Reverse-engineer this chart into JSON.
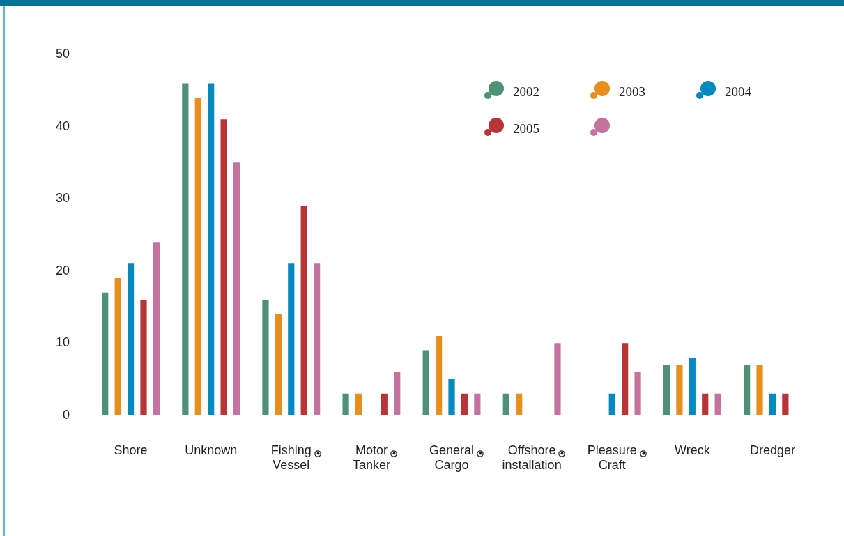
{
  "chart_data": {
    "type": "bar",
    "categories": [
      "Shore",
      "Unknown",
      "Fishing\nVessel",
      "Motor\nTanker",
      "General\nCargo",
      "Offshore\ninstallation",
      "Pleasure\nCraft",
      "Wreck",
      "Dredger"
    ],
    "series": [
      {
        "name": "2002",
        "color": "#4e9174",
        "values": [
          17,
          46,
          16,
          3,
          9,
          3,
          0,
          7,
          7
        ]
      },
      {
        "name": "2003",
        "color": "#e68e1e",
        "values": [
          19,
          44,
          14,
          3,
          11,
          3,
          0,
          7,
          7
        ]
      },
      {
        "name": "2004",
        "color": "#0189c0",
        "values": [
          21,
          46,
          21,
          0,
          5,
          0,
          3,
          8,
          3
        ]
      },
      {
        "name": "2005",
        "color": "#b83537",
        "values": [
          16,
          41,
          29,
          3,
          3,
          0,
          10,
          3,
          3
        ]
      },
      {
        "color": "#c4739f",
        "values": [
          24,
          35,
          21,
          6,
          3,
          10,
          6,
          3,
          0
        ]
      }
    ],
    "ylim": [
      0,
      50
    ],
    "yticks": [
      0,
      10,
      20,
      30,
      40,
      50
    ],
    "grid": false,
    "legend": "top right"
  }
}
